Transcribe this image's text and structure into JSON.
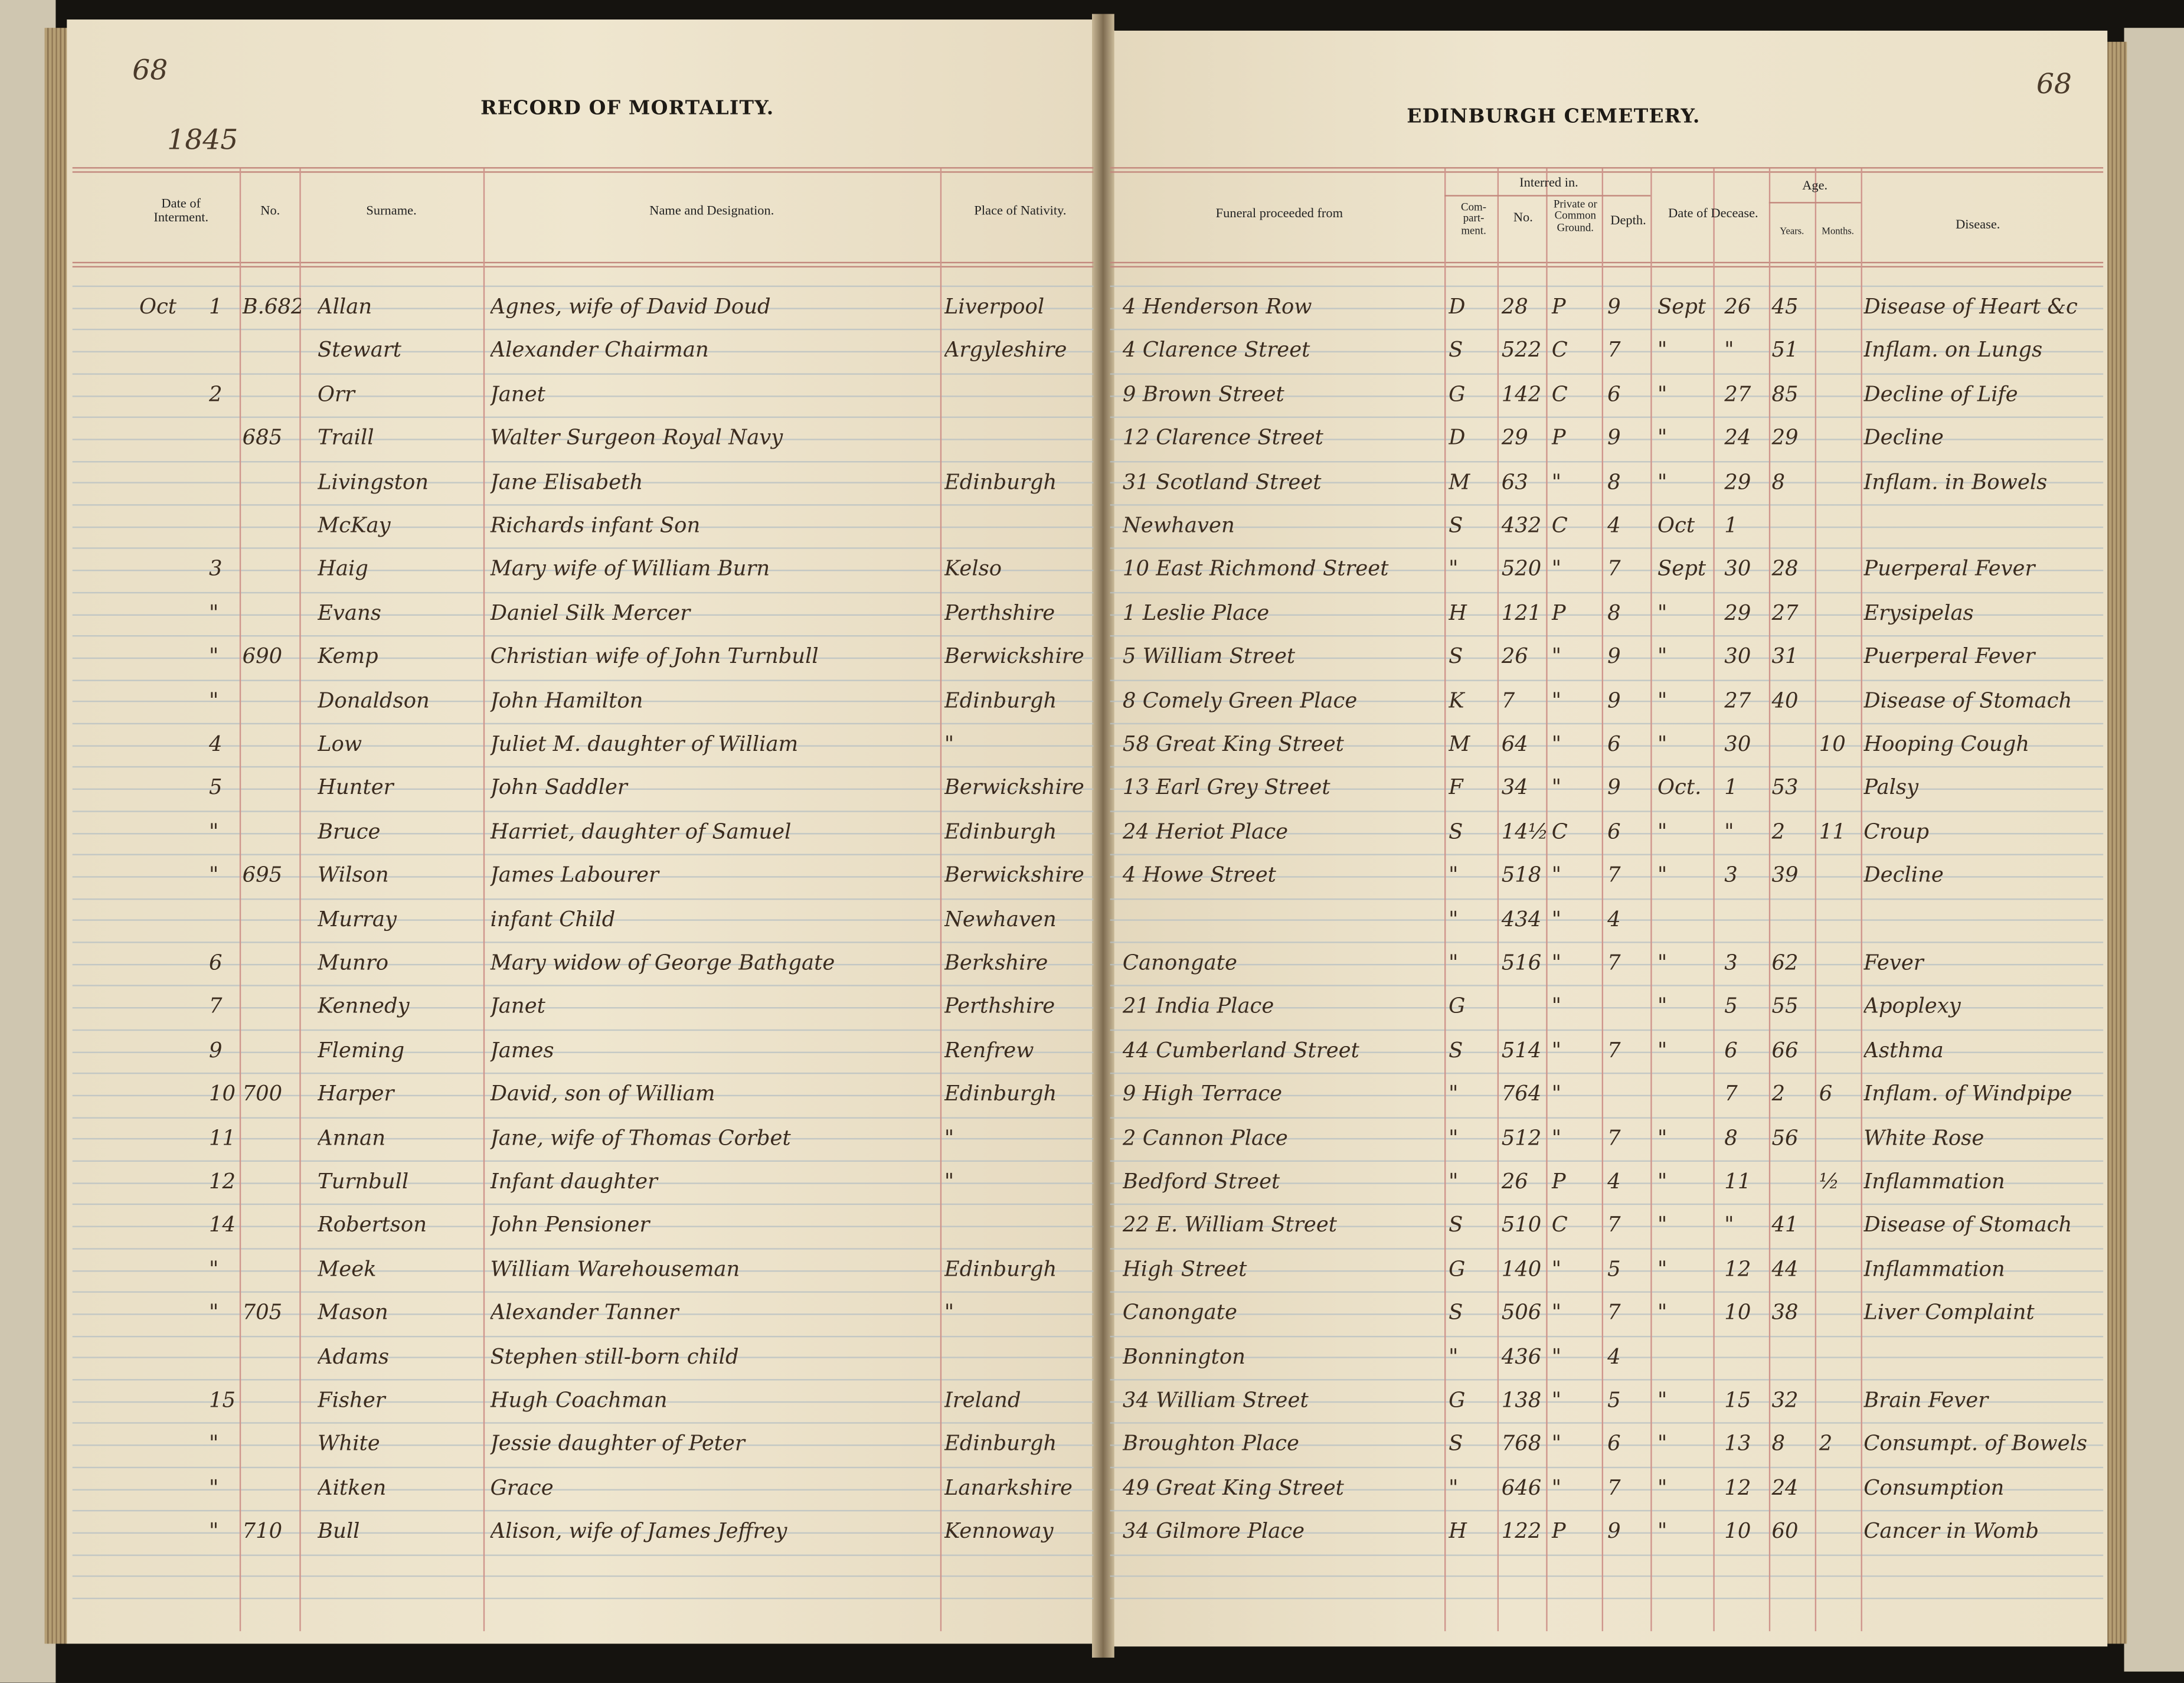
{
  "left_page": {
    "title": "RECORD OF MORTALITY.",
    "page_number": "68",
    "year": "1845",
    "headers": {
      "date": "Date of Interment.",
      "no": "No.",
      "surname": "Surname.",
      "name": "Name and Designation.",
      "nativity": "Place of Nativity."
    }
  },
  "right_page": {
    "title": "EDINBURGH CEMETERY.",
    "page_number": "68",
    "headers": {
      "funeral": "Funeral proceeded from",
      "interred": "Interred in.",
      "compartment": "Com- part- ment.",
      "no": "No.",
      "ground": "Private or Common Ground.",
      "depth": "Depth.",
      "decease": "Date of Decease.",
      "age": "Age.",
      "years": "Years.",
      "months": "Months.",
      "disease": "Disease."
    }
  },
  "columns": [
    "month",
    "day",
    "no",
    "surname",
    "name",
    "nativity",
    "funeral",
    "compartment",
    "grave_no",
    "ground",
    "depth",
    "decease_month",
    "decease_day",
    "age_years",
    "age_months",
    "disease"
  ],
  "rows": [
    [
      "Oct",
      "1",
      "B.682",
      "Allan",
      "Agnes, wife of David Doud",
      "Liverpool",
      "4 Henderson Row",
      "D",
      "28",
      "P",
      "9",
      "Sept",
      "26",
      "45",
      "",
      "Disease of Heart &c"
    ],
    [
      "",
      "",
      "",
      "Stewart",
      "Alexander  Chairman",
      "Argyleshire",
      "4 Clarence Street",
      "S",
      "522",
      "C",
      "7",
      "\"",
      "\"",
      "51",
      "",
      "Inflam. on Lungs"
    ],
    [
      "",
      "2",
      "",
      "Orr",
      "Janet",
      "",
      "9 Brown Street",
      "G",
      "142",
      "C",
      "6",
      "\"",
      "27",
      "85",
      "",
      "Decline of Life"
    ],
    [
      "",
      "",
      "685",
      "Traill",
      "Walter Surgeon Royal Navy",
      "",
      "12 Clarence Street",
      "D",
      "29",
      "P",
      "9",
      "\"",
      "24",
      "29",
      "",
      "Decline"
    ],
    [
      "",
      "",
      "",
      "Livingston",
      "Jane Elisabeth",
      "Edinburgh",
      "31 Scotland Street",
      "M",
      "63",
      "\"",
      "8",
      "\"",
      "29",
      "8",
      "",
      "Inflam. in Bowels"
    ],
    [
      "",
      "",
      "",
      "McKay",
      "Richards infant Son",
      "",
      "Newhaven",
      "S",
      "432",
      "C",
      "4",
      "Oct",
      "1",
      "",
      "",
      ""
    ],
    [
      "",
      "3",
      "",
      "Haig",
      "Mary wife of William Burn",
      "Kelso",
      "10 East Richmond Street",
      "\"",
      "520",
      "\"",
      "7",
      "Sept",
      "30",
      "28",
      "",
      "Puerperal Fever"
    ],
    [
      "",
      "\"",
      "",
      "Evans",
      "Daniel Silk Mercer",
      "Perthshire",
      "1 Leslie Place",
      "H",
      "121",
      "P",
      "8",
      "\"",
      "29",
      "27",
      "",
      "Erysipelas"
    ],
    [
      "",
      "\"",
      "690",
      "Kemp",
      "Christian wife of John Turnbull",
      "Berwickshire",
      "5 William Street",
      "S",
      "26",
      "\"",
      "9",
      "\"",
      "30",
      "31",
      "",
      "Puerperal Fever"
    ],
    [
      "",
      "\"",
      "",
      "Donaldson",
      "John Hamilton",
      "Edinburgh",
      "8 Comely Green Place",
      "K",
      "7",
      "\"",
      "9",
      "\"",
      "27",
      "40",
      "",
      "Disease of Stomach"
    ],
    [
      "",
      "4",
      "",
      "Low",
      "Juliet M. daughter of William",
      "\"",
      "58 Great King Street",
      "M",
      "64",
      "\"",
      "6",
      "\"",
      "30",
      "",
      "10",
      "Hooping Cough"
    ],
    [
      "",
      "5",
      "",
      "Hunter",
      "John  Saddler",
      "Berwickshire",
      "13 Earl Grey Street",
      "F",
      "34",
      "\"",
      "9",
      "Oct.",
      "1",
      "53",
      "",
      "Palsy"
    ],
    [
      "",
      "\"",
      "",
      "Bruce",
      "Harriet, daughter of Samuel",
      "Edinburgh",
      "24 Heriot Place",
      "S",
      "14½",
      "C",
      "6",
      "\"",
      "\"",
      "2",
      "11",
      "Croup"
    ],
    [
      "",
      "\"",
      "695",
      "Wilson",
      "James  Labourer",
      "Berwickshire",
      "4 Howe Street",
      "\"",
      "518",
      "\"",
      "7",
      "\"",
      "3",
      "39",
      "",
      "Decline"
    ],
    [
      "",
      "",
      "",
      "Murray",
      "      infant Child",
      "Newhaven",
      "",
      "\"",
      "434",
      "\"",
      "4",
      "",
      "",
      "",
      "",
      ""
    ],
    [
      "",
      "6",
      "",
      "Munro",
      "Mary widow of George Bathgate",
      "Berkshire",
      "Canongate",
      "\"",
      "516",
      "\"",
      "7",
      "\"",
      "3",
      "62",
      "",
      "Fever"
    ],
    [
      "",
      "7",
      "",
      "Kennedy",
      "Janet",
      "Perthshire",
      "21 India Place",
      "G",
      "",
      "\"",
      "",
      "\"",
      "5",
      "55",
      "",
      "Apoplexy"
    ],
    [
      "",
      "9",
      "",
      "Fleming",
      "James",
      "Renfrew",
      "44 Cumberland Street",
      "S",
      "514",
      "\"",
      "7",
      "\"",
      "6",
      "66",
      "",
      "Asthma"
    ],
    [
      "",
      "10",
      "700",
      "Harper",
      "David,  son of William",
      "Edinburgh",
      "9 High Terrace",
      "\"",
      "764",
      "\"",
      "",
      "",
      "7",
      "2",
      "6",
      "Inflam. of Windpipe"
    ],
    [
      "",
      "11",
      "",
      "Annan",
      "Jane,  wife of Thomas Corbet",
      "\"",
      "2 Cannon Place",
      "\"",
      "512",
      "\"",
      "7",
      "\"",
      "8",
      "56",
      "",
      "White Rose"
    ],
    [
      "",
      "12",
      "",
      "Turnbull",
      "Infant daughter",
      "\"",
      "Bedford Street",
      "\"",
      "26",
      "P",
      "4",
      "\"",
      "11",
      "",
      "½",
      "Inflammation"
    ],
    [
      "",
      "14",
      "",
      "Robertson",
      "John  Pensioner",
      "",
      "22 E. William Street",
      "S",
      "510",
      "C",
      "7",
      "\"",
      "\"",
      "41",
      "",
      "Disease of Stomach"
    ],
    [
      "",
      "\"",
      "",
      "Meek",
      "William  Warehouseman",
      "Edinburgh",
      "High Street",
      "G",
      "140",
      "\"",
      "5",
      "\"",
      "12",
      "44",
      "",
      "Inflammation"
    ],
    [
      "",
      "\"",
      "705",
      "Mason",
      "Alexander  Tanner",
      "\"",
      "Canongate",
      "S",
      "506",
      "\"",
      "7",
      "\"",
      "10",
      "38",
      "",
      "Liver Complaint"
    ],
    [
      "",
      "",
      "",
      "Adams",
      "Stephen still-born child",
      "",
      "Bonnington",
      "\"",
      "436",
      "\"",
      "4",
      "",
      "",
      "",
      "",
      ""
    ],
    [
      "",
      "15",
      "",
      "Fisher",
      "Hugh  Coachman",
      "Ireland",
      "34 William Street",
      "G",
      "138",
      "\"",
      "5",
      "\"",
      "15",
      "32",
      "",
      "Brain Fever"
    ],
    [
      "",
      "\"",
      "",
      "White",
      "Jessie daughter of Peter",
      "Edinburgh",
      "Broughton Place",
      "S",
      "768",
      "\"",
      "6",
      "\"",
      "13",
      "8",
      "2",
      "Consumpt. of Bowels"
    ],
    [
      "",
      "\"",
      "",
      "Aitken",
      "Grace",
      "Lanarkshire",
      "49 Great King Street",
      "\"",
      "646",
      "\"",
      "7",
      "\"",
      "12",
      "24",
      "",
      "Consumption"
    ],
    [
      "",
      "\"",
      "710",
      "Bull",
      "Alison, wife of James Jeffrey",
      "Kennoway",
      "34 Gilmore Place",
      "H",
      "122",
      "P",
      "9",
      "\"",
      "10",
      "60",
      "",
      "Cancer in Womb"
    ]
  ],
  "colors": {
    "paper": "#ede3cb",
    "ink": "#3b2c1f",
    "red_rule": "#c2877c",
    "blue_rule": "#b8c1c3",
    "cloth": "#cfc6b0"
  }
}
